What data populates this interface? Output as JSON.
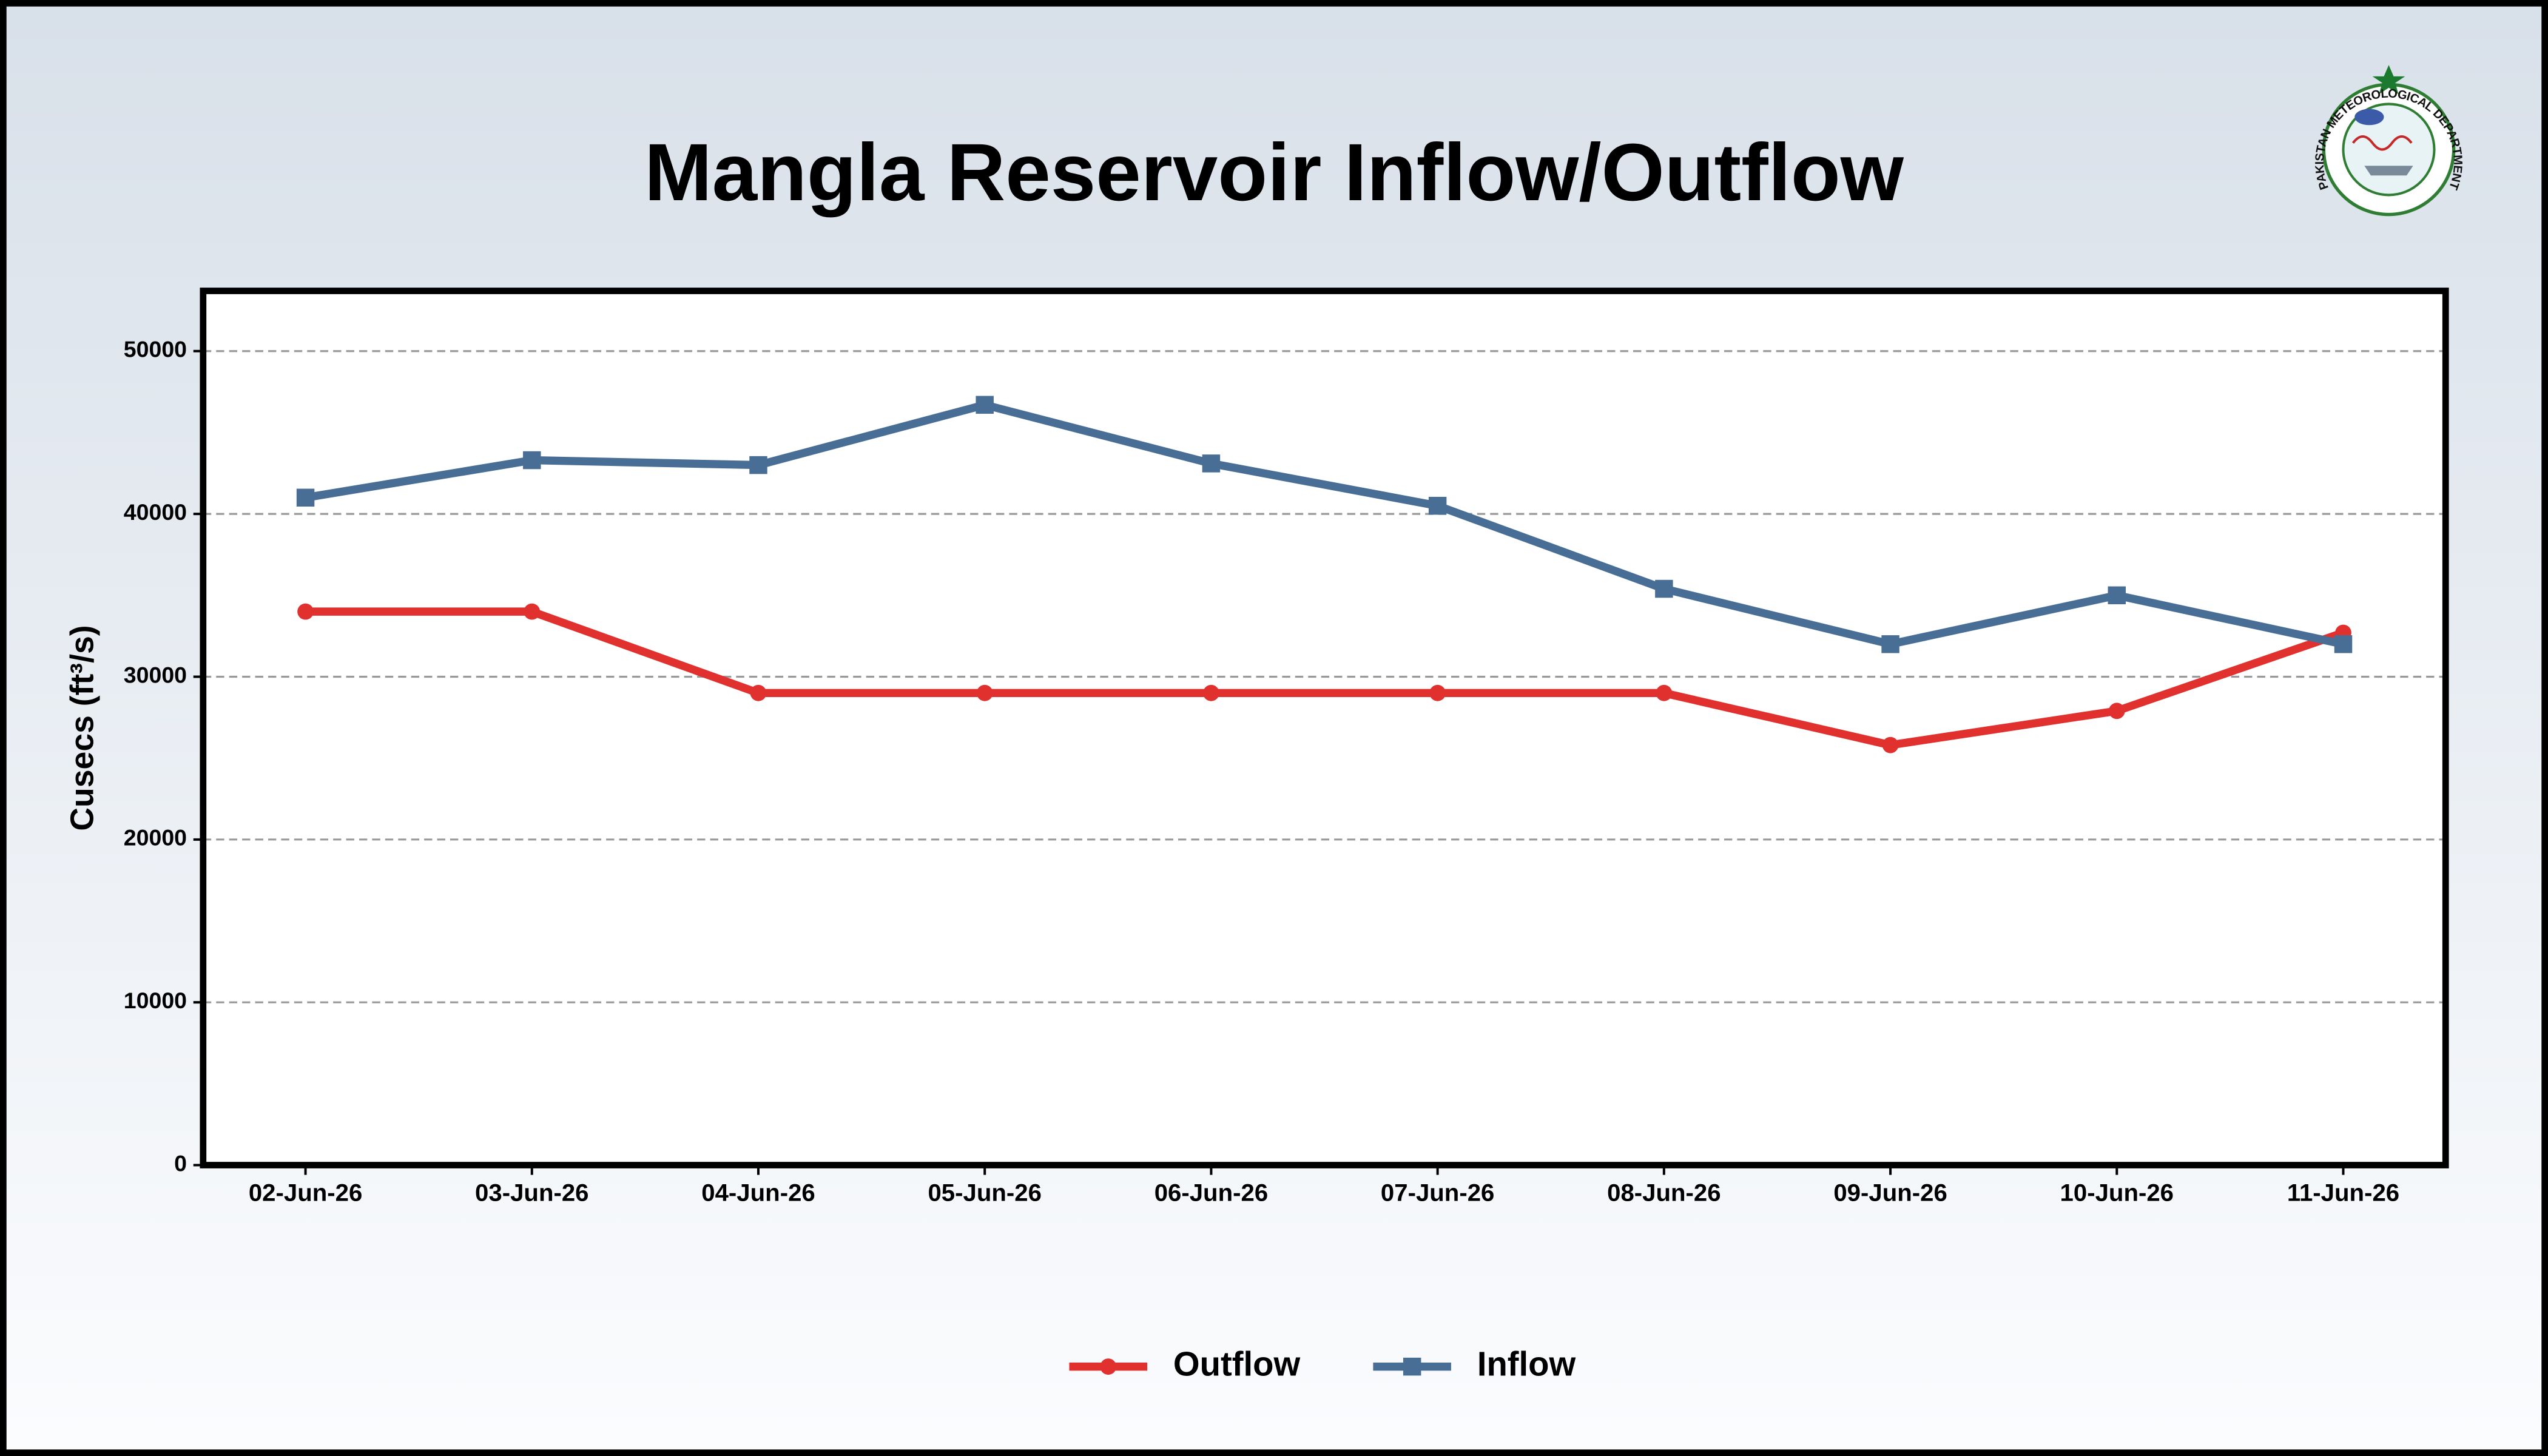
{
  "chart_data": {
    "type": "line",
    "title": "Mangla Reservoir Inflow/Outflow",
    "y_label": "Cusecs (ft³/s)",
    "categories": [
      "02-Jun-26",
      "03-Jun-26",
      "04-Jun-26",
      "05-Jun-26",
      "06-Jun-26",
      "07-Jun-26",
      "08-Jun-26",
      "09-Jun-26",
      "10-Jun-26",
      "11-Jun-26"
    ],
    "series": [
      {
        "name": "Outflow",
        "color": "#e0312f",
        "marker": "circle",
        "values": [
          34000,
          34000,
          29000,
          29000,
          29000,
          29000,
          29000,
          25800,
          27900,
          32700
        ]
      },
      {
        "name": "Inflow",
        "color": "#486e96",
        "marker": "square",
        "values": [
          41000,
          43300,
          43000,
          46700,
          43100,
          40500,
          35400,
          32000,
          35000,
          32000
        ]
      }
    ],
    "ylim": [
      0,
      53700
    ],
    "yticks": [
      0,
      10000,
      20000,
      30000,
      40000,
      50000
    ],
    "grid": true,
    "legend": "bottom"
  },
  "logo": {
    "text": "PAKISTAN METEOROLOGICAL DEPARTMENT"
  }
}
